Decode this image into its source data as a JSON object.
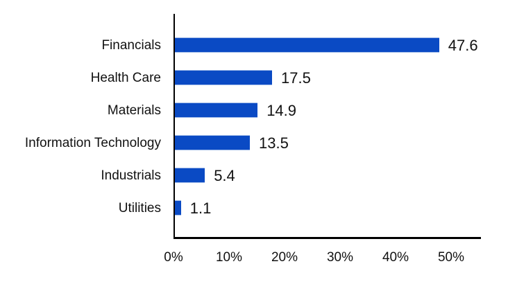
{
  "chart_data": {
    "type": "bar",
    "orientation": "horizontal",
    "title": "",
    "xlabel": "",
    "ylabel": "",
    "categories": [
      "Financials",
      "Health Care",
      "Materials",
      "Information Technology",
      "Industrials",
      "Utilities"
    ],
    "values": [
      47.6,
      17.5,
      14.9,
      13.5,
      5.4,
      1.1
    ],
    "value_labels": [
      "47.6",
      "17.5",
      "14.9",
      "13.5",
      "5.4",
      "1.1"
    ],
    "x_tick_labels": [
      "0%",
      "10%",
      "20%",
      "30%",
      "40%",
      "50%"
    ],
    "x_tick_values": [
      0,
      10,
      20,
      30,
      40,
      50
    ],
    "xlim": [
      0,
      55.1
    ],
    "grid": false,
    "legend": false,
    "bar_color": "#0A4AC4",
    "axis_color": "#000000",
    "text_color": "#111111",
    "background_color": "#FFFFFF"
  }
}
